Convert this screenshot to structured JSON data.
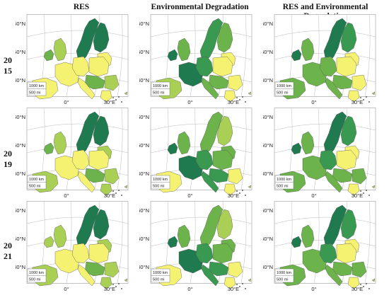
{
  "columns": [
    {
      "title": "RES"
    },
    {
      "title": "Environmental Degradation"
    },
    {
      "title": "RES and Environmental Degradation"
    }
  ],
  "rows": [
    {
      "label_top": "20",
      "label_bottom": "15"
    },
    {
      "label_top": "20",
      "label_bottom": "19"
    },
    {
      "label_top": "20",
      "label_bottom": "21"
    }
  ],
  "axis": {
    "lat_labels": [
      "60°N",
      "50°N",
      "40°N"
    ],
    "lon_labels": [
      "0°",
      "30°E"
    ]
  },
  "scalebar": {
    "km": "1000 km",
    "mi": "500 mi"
  },
  "colors": {
    "dark": "#1f7a50",
    "mid": "#3a9950",
    "green": "#6bb34a",
    "light": "#a9cf55",
    "yellow": "#f5f272"
  },
  "maps": [
    [
      {
        "north": "dark",
        "fi": "dark",
        "baltic": "yellow",
        "ie": "green",
        "uk": "light",
        "fr": "yellow",
        "ib": "yellow",
        "de": "yellow",
        "pl": "yellow",
        "ce": "green",
        "it": "yellow",
        "se": "light",
        "gr": "yellow"
      },
      {
        "north": "mid",
        "fi": "green",
        "baltic": "yellow",
        "ie": "dark",
        "uk": "green",
        "fr": "dark",
        "ib": "light",
        "de": "mid",
        "pl": "yellow",
        "ce": "green",
        "it": "green",
        "se": "yellow",
        "gr": "yellow"
      },
      {
        "north": "dark",
        "fi": "mid",
        "baltic": "yellow",
        "ie": "dark",
        "uk": "green",
        "fr": "green",
        "ib": "green",
        "de": "green",
        "pl": "yellow",
        "ce": "green",
        "it": "green",
        "se": "yellow",
        "gr": "yellow"
      }
    ],
    [
      {
        "north": "dark",
        "fi": "dark",
        "baltic": "light",
        "ie": "green",
        "uk": "light",
        "fr": "yellow",
        "ib": "light",
        "de": "yellow",
        "pl": "yellow",
        "ce": "green",
        "it": "yellow",
        "se": "light",
        "gr": "light"
      },
      {
        "north": "green",
        "fi": "light",
        "baltic": "green",
        "ie": "dark",
        "uk": "green",
        "fr": "dark",
        "ib": "yellow",
        "de": "mid",
        "pl": "green",
        "ce": "mid",
        "it": "mid",
        "se": "yellow",
        "gr": "yellow"
      },
      {
        "north": "dark",
        "fi": "mid",
        "baltic": "yellow",
        "ie": "dark",
        "uk": "green",
        "fr": "green",
        "ib": "green",
        "de": "mid",
        "pl": "yellow",
        "ce": "green",
        "it": "green",
        "se": "green",
        "gr": "yellow"
      }
    ],
    [
      {
        "north": "dark",
        "fi": "dark",
        "baltic": "light",
        "ie": "light",
        "uk": "light",
        "fr": "yellow",
        "ib": "light",
        "de": "yellow",
        "pl": "yellow",
        "ce": "green",
        "it": "yellow",
        "se": "light",
        "gr": "light"
      },
      {
        "north": "green",
        "fi": "light",
        "baltic": "green",
        "ie": "dark",
        "uk": "green",
        "fr": "dark",
        "ib": "yellow",
        "de": "mid",
        "pl": "green",
        "ce": "mid",
        "it": "mid",
        "se": "yellow",
        "gr": "yellow"
      },
      {
        "north": "dark",
        "fi": "mid",
        "baltic": "yellow",
        "ie": "dark",
        "uk": "green",
        "fr": "green",
        "ib": "green",
        "de": "mid",
        "pl": "yellow",
        "ce": "green",
        "it": "green",
        "se": "green",
        "gr": "yellow"
      }
    ]
  ]
}
